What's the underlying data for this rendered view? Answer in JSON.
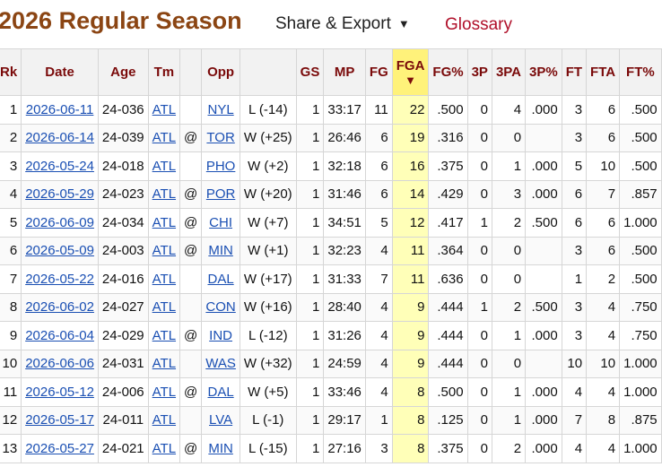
{
  "header": {
    "title": "2026 Regular Season",
    "share_label": "Share & Export",
    "share_caret": "▼",
    "glossary_label": "Glossary"
  },
  "table": {
    "sort_arrow": "▼",
    "columns": [
      "Rk",
      "Date",
      "Age",
      "Tm",
      "",
      "Opp",
      "",
      "GS",
      "MP",
      "FG",
      "FGA",
      "FG%",
      "3P",
      "3PA",
      "3P%",
      "FT",
      "FTA",
      "FT%"
    ],
    "rows": [
      [
        "1",
        "2026-06-11",
        "24-036",
        "ATL",
        "",
        "NYL",
        "L (-14)",
        "1",
        "33:17",
        "11",
        "22",
        ".500",
        "0",
        "4",
        ".000",
        "3",
        "6",
        ".500"
      ],
      [
        "2",
        "2026-06-14",
        "24-039",
        "ATL",
        "@",
        "TOR",
        "W (+25)",
        "1",
        "26:46",
        "6",
        "19",
        ".316",
        "0",
        "0",
        "",
        "3",
        "6",
        ".500"
      ],
      [
        "3",
        "2026-05-24",
        "24-018",
        "ATL",
        "",
        "PHO",
        "W (+2)",
        "1",
        "32:18",
        "6",
        "16",
        ".375",
        "0",
        "1",
        ".000",
        "5",
        "10",
        ".500"
      ],
      [
        "4",
        "2026-05-29",
        "24-023",
        "ATL",
        "@",
        "POR",
        "W (+20)",
        "1",
        "31:46",
        "6",
        "14",
        ".429",
        "0",
        "3",
        ".000",
        "6",
        "7",
        ".857"
      ],
      [
        "5",
        "2026-06-09",
        "24-034",
        "ATL",
        "@",
        "CHI",
        "W (+7)",
        "1",
        "34:51",
        "5",
        "12",
        ".417",
        "1",
        "2",
        ".500",
        "6",
        "6",
        "1.000"
      ],
      [
        "6",
        "2026-05-09",
        "24-003",
        "ATL",
        "@",
        "MIN",
        "W (+1)",
        "1",
        "32:23",
        "4",
        "11",
        ".364",
        "0",
        "0",
        "",
        "3",
        "6",
        ".500"
      ],
      [
        "7",
        "2026-05-22",
        "24-016",
        "ATL",
        "",
        "DAL",
        "W (+17)",
        "1",
        "31:33",
        "7",
        "11",
        ".636",
        "0",
        "0",
        "",
        "1",
        "2",
        ".500"
      ],
      [
        "8",
        "2026-06-02",
        "24-027",
        "ATL",
        "",
        "CON",
        "W (+16)",
        "1",
        "28:40",
        "4",
        "9",
        ".444",
        "1",
        "2",
        ".500",
        "3",
        "4",
        ".750"
      ],
      [
        "9",
        "2026-06-04",
        "24-029",
        "ATL",
        "@",
        "IND",
        "L (-12)",
        "1",
        "31:26",
        "4",
        "9",
        ".444",
        "0",
        "1",
        ".000",
        "3",
        "4",
        ".750"
      ],
      [
        "10",
        "2026-06-06",
        "24-031",
        "ATL",
        "",
        "WAS",
        "W (+32)",
        "1",
        "24:59",
        "4",
        "9",
        ".444",
        "0",
        "0",
        "",
        "10",
        "10",
        "1.000"
      ],
      [
        "11",
        "2026-05-12",
        "24-006",
        "ATL",
        "@",
        "DAL",
        "W (+5)",
        "1",
        "33:46",
        "4",
        "8",
        ".500",
        "0",
        "1",
        ".000",
        "4",
        "4",
        "1.000"
      ],
      [
        "12",
        "2026-05-17",
        "24-011",
        "ATL",
        "",
        "LVA",
        "L (-1)",
        "1",
        "29:17",
        "1",
        "8",
        ".125",
        "0",
        "1",
        ".000",
        "7",
        "8",
        ".875"
      ],
      [
        "13",
        "2026-05-27",
        "24-021",
        "ATL",
        "@",
        "MIN",
        "L (-15)",
        "1",
        "27:16",
        "3",
        "8",
        ".375",
        "0",
        "2",
        ".000",
        "4",
        "4",
        "1.000"
      ]
    ]
  }
}
